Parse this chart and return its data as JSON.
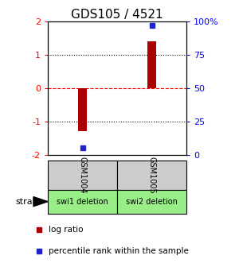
{
  "title": "GDS105 / 4521",
  "samples": [
    "GSM1004",
    "GSM1005"
  ],
  "log_ratios": [
    -1.3,
    1.4
  ],
  "percentiles": [
    0.05,
    0.97
  ],
  "strains": [
    "swi1 deletion",
    "swi2 deletion"
  ],
  "ylim": [
    -2,
    2
  ],
  "y_ticks_left": [
    -2,
    -1,
    0,
    1,
    2
  ],
  "y_ticks_right": [
    0,
    25,
    50,
    75,
    100
  ],
  "bar_color": "#aa0000",
  "pct_color": "#2222cc",
  "gray_box_color": "#cccccc",
  "green_box_color": "#99ee88",
  "title_fontsize": 11,
  "tick_fontsize": 8,
  "legend_fontsize": 7.5,
  "bar_width": 0.06
}
